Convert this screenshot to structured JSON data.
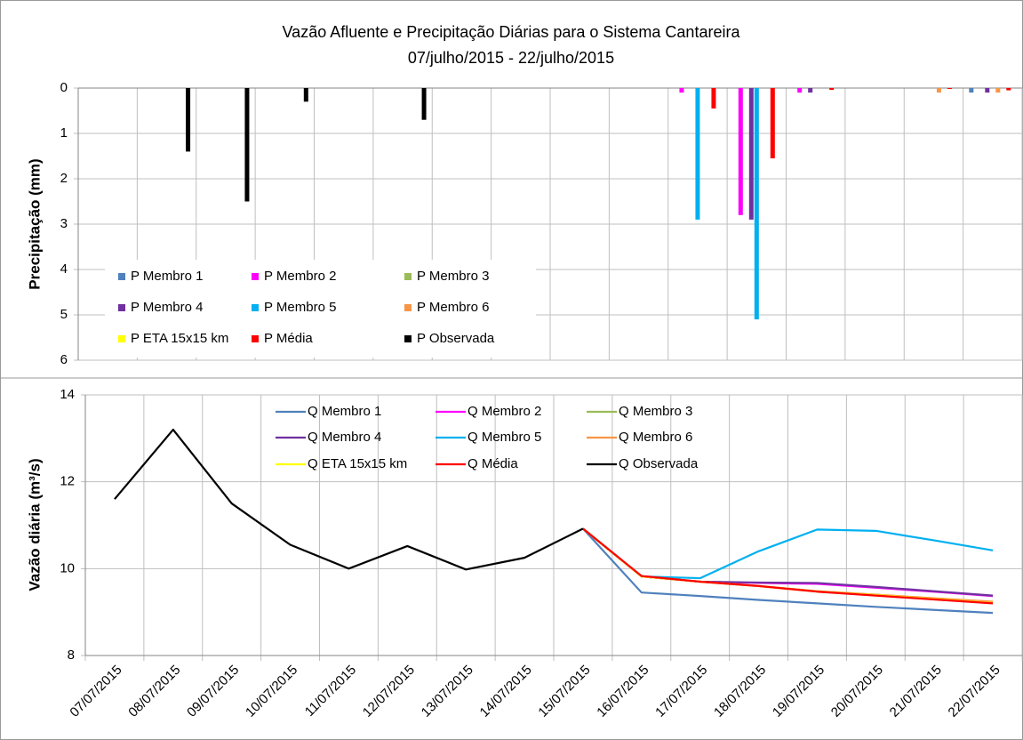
{
  "chart_data": [
    {
      "type": "bar",
      "title": "Vazão Afluente e Precipitação Diárias para o Sistema Cantareira",
      "subtitle": "07/julho/2015 - 22/julho/2015",
      "y_label": "Precipitação (mm)",
      "ylim": [
        0,
        6
      ],
      "yticks": [
        0,
        1,
        2,
        3,
        4,
        5,
        6
      ],
      "y_reversed": true,
      "grid": true,
      "series": [
        {
          "name": "P Membro 1",
          "color": "#4f81bd",
          "values": [
            null,
            null,
            null,
            null,
            null,
            null,
            null,
            null,
            null,
            0,
            0,
            0,
            0,
            0,
            0,
            0.1
          ]
        },
        {
          "name": "P Membro 2",
          "color": "#ff00ff",
          "values": [
            null,
            null,
            null,
            null,
            null,
            null,
            null,
            null,
            null,
            0,
            0.1,
            2.8,
            0.1,
            0,
            0,
            0
          ]
        },
        {
          "name": "P Membro 3",
          "color": "#9bbb59",
          "values": [
            null,
            null,
            null,
            null,
            null,
            null,
            null,
            null,
            null,
            0,
            0,
            0,
            0,
            0,
            0,
            0
          ]
        },
        {
          "name": "P Membro 4",
          "color": "#7030a0",
          "values": [
            null,
            null,
            null,
            null,
            null,
            null,
            null,
            null,
            null,
            0,
            0,
            2.9,
            0.1,
            0,
            0,
            0.1
          ]
        },
        {
          "name": "P Membro 5",
          "color": "#00b0f0",
          "values": [
            null,
            null,
            null,
            null,
            null,
            null,
            null,
            null,
            null,
            0,
            2.9,
            5.1,
            0,
            0,
            0,
            0
          ]
        },
        {
          "name": "P Membro 6",
          "color": "#f79646",
          "values": [
            null,
            null,
            null,
            null,
            null,
            null,
            null,
            null,
            null,
            0,
            0,
            0,
            0,
            0,
            0.1,
            0.1
          ]
        },
        {
          "name": "P ETA 15x15 km",
          "color": "#ffff00",
          "values": [
            null,
            null,
            null,
            null,
            null,
            null,
            null,
            null,
            null,
            0,
            0,
            0,
            0,
            0,
            0,
            0
          ]
        },
        {
          "name": "P Média",
          "color": "#ff0000",
          "values": [
            null,
            null,
            null,
            null,
            null,
            null,
            null,
            null,
            null,
            0,
            0.45,
            1.55,
            0.04,
            0,
            0.02,
            0.05
          ]
        },
        {
          "name": "P Observada",
          "color": "#000000",
          "values": [
            0,
            1.4,
            2.5,
            0.3,
            0,
            0.7,
            0,
            0,
            0,
            null,
            null,
            null,
            null,
            null,
            null,
            null
          ]
        }
      ]
    },
    {
      "type": "line",
      "y_label": "Vazão diária (m³/s)",
      "ylim": [
        8,
        14
      ],
      "yticks": [
        8,
        10,
        12,
        14
      ],
      "grid": true,
      "categories": [
        "07/07/2015",
        "08/07/2015",
        "09/07/2015",
        "10/07/2015",
        "11/07/2015",
        "12/07/2015",
        "13/07/2015",
        "14/07/2015",
        "15/07/2015",
        "16/07/2015",
        "17/07/2015",
        "18/07/2015",
        "19/07/2015",
        "20/07/2015",
        "21/07/2015",
        "22/07/2015"
      ],
      "series": [
        {
          "name": "Q Membro 1",
          "color": "#4f81bd",
          "values": [
            null,
            null,
            null,
            null,
            null,
            null,
            null,
            null,
            10.92,
            9.45,
            9.37,
            9.28,
            9.2,
            9.12,
            9.05,
            8.98
          ]
        },
        {
          "name": "Q Membro 2",
          "color": "#ff00ff",
          "values": [
            null,
            null,
            null,
            null,
            null,
            null,
            null,
            null,
            10.92,
            9.82,
            9.7,
            9.67,
            9.65,
            9.56,
            9.47,
            9.37
          ]
        },
        {
          "name": "Q Membro 3",
          "color": "#9bbb59",
          "values": [
            null,
            null,
            null,
            null,
            null,
            null,
            null,
            null,
            10.92,
            9.82,
            9.7,
            9.6,
            9.48,
            9.4,
            9.3,
            9.22
          ]
        },
        {
          "name": "Q Membro 4",
          "color": "#7030a0",
          "values": [
            null,
            null,
            null,
            null,
            null,
            null,
            null,
            null,
            10.92,
            9.82,
            9.7,
            9.68,
            9.67,
            9.58,
            9.48,
            9.38
          ]
        },
        {
          "name": "Q Membro 5",
          "color": "#00b0f0",
          "values": [
            null,
            null,
            null,
            null,
            null,
            null,
            null,
            null,
            10.92,
            9.82,
            9.78,
            10.4,
            10.9,
            10.87,
            10.65,
            10.42
          ]
        },
        {
          "name": "Q Membro 6",
          "color": "#f79646",
          "values": [
            null,
            null,
            null,
            null,
            null,
            null,
            null,
            null,
            10.92,
            9.82,
            9.7,
            9.6,
            9.48,
            9.4,
            9.32,
            9.24
          ]
        },
        {
          "name": "Q ETA 15x15 km",
          "color": "#ffff00",
          "values": [
            null,
            null,
            null,
            null,
            null,
            null,
            null,
            null,
            10.92,
            9.82,
            9.7,
            9.6,
            9.47,
            9.39,
            9.3,
            9.21
          ]
        },
        {
          "name": "Q Média",
          "color": "#ff0000",
          "values": [
            null,
            null,
            null,
            null,
            null,
            null,
            null,
            null,
            10.92,
            9.83,
            9.7,
            9.6,
            9.47,
            9.38,
            9.29,
            9.2
          ]
        },
        {
          "name": "Q Observada",
          "color": "#000000",
          "values": [
            11.6,
            13.2,
            11.5,
            10.55,
            10.0,
            10.52,
            9.98,
            10.25,
            10.92,
            null,
            null,
            null,
            null,
            null,
            null,
            null
          ]
        }
      ]
    }
  ]
}
